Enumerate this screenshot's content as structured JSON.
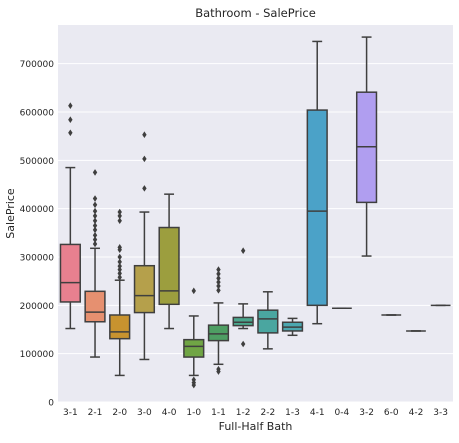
{
  "chart_data": {
    "type": "box",
    "title": "Bathroom - SalePrice",
    "xlabel": "Full-Half Bath",
    "ylabel": "SalePrice",
    "ylim": [
      0,
      780000
    ],
    "yticks": [
      0,
      100000,
      200000,
      300000,
      400000,
      500000,
      600000,
      700000
    ],
    "ytick_labels": [
      "0",
      "100000",
      "200000",
      "300000",
      "400000",
      "500000",
      "600000",
      "700000"
    ],
    "grid": true,
    "background": "#eaeaf2",
    "boxes": [
      {
        "category": "3-1",
        "color": "#e8808f",
        "whisker_low": 152000,
        "q1": 207000,
        "median": 247000,
        "q3": 326000,
        "whisker_high": 485000,
        "outliers": [
          613000,
          584000,
          557000
        ]
      },
      {
        "category": "2-1",
        "color": "#e69070",
        "whisker_low": 93000,
        "q1": 166000,
        "median": 186000,
        "q3": 229000,
        "whisker_high": 318000,
        "outliers": [
          475000,
          421000,
          408000,
          395000,
          385000,
          375000,
          365000,
          356000,
          345000,
          336000,
          327000
        ]
      },
      {
        "category": "2-0",
        "color": "#c8932f",
        "whisker_low": 55000,
        "q1": 131000,
        "median": 145000,
        "q3": 180000,
        "whisker_high": 252000,
        "outliers": [
          393000,
          385000,
          375000,
          320000,
          315000,
          300000,
          290000,
          281000,
          274000,
          266000,
          258000
        ]
      },
      {
        "category": "3-0",
        "color": "#b5a04b",
        "whisker_low": 88000,
        "q1": 185000,
        "median": 220000,
        "q3": 282000,
        "whisker_high": 393000,
        "outliers": [
          553000,
          503000,
          442000
        ]
      },
      {
        "category": "4-0",
        "color": "#9c9e3e",
        "whisker_low": 152000,
        "q1": 202000,
        "median": 230000,
        "q3": 361000,
        "whisker_high": 430000,
        "outliers": []
      },
      {
        "category": "1-0",
        "color": "#70a545",
        "whisker_low": 55000,
        "q1": 93000,
        "median": 115000,
        "q3": 129000,
        "whisker_high": 178000,
        "outliers": [
          230000,
          46000,
          40000,
          35000
        ]
      },
      {
        "category": "1-1",
        "color": "#4e9e63",
        "whisker_low": 78000,
        "q1": 127000,
        "median": 141000,
        "q3": 159000,
        "whisker_high": 205000,
        "outliers": [
          274000,
          265000,
          256000,
          248000,
          240000,
          231000,
          68000,
          63000
        ]
      },
      {
        "category": "1-2",
        "color": "#4aa68c",
        "whisker_low": 152000,
        "q1": 158000,
        "median": 165000,
        "q3": 175000,
        "whisker_high": 203000,
        "outliers": [
          313000,
          120000
        ]
      },
      {
        "category": "2-2",
        "color": "#4aa6a0",
        "whisker_low": 110000,
        "q1": 143000,
        "median": 172000,
        "q3": 190000,
        "whisker_high": 228000,
        "outliers": []
      },
      {
        "category": "1-3",
        "color": "#4ba7b0",
        "whisker_low": 138000,
        "q1": 147000,
        "median": 155000,
        "q3": 165000,
        "whisker_high": 173000,
        "outliers": []
      },
      {
        "category": "4-1",
        "color": "#4ba2c8",
        "whisker_low": 162000,
        "q1": 200000,
        "median": 395000,
        "q3": 604000,
        "whisker_high": 746000,
        "outliers": []
      },
      {
        "category": "0-4",
        "color": "#6b9fd6",
        "whisker_low": 194000,
        "q1": 194000,
        "median": 194000,
        "q3": 194000,
        "whisker_high": 194000,
        "outliers": []
      },
      {
        "category": "3-2",
        "color": "#b09ef0",
        "whisker_low": 302000,
        "q1": 413000,
        "median": 528000,
        "q3": 641000,
        "whisker_high": 755000,
        "outliers": []
      },
      {
        "category": "6-0",
        "color": "#d08fe0",
        "whisker_low": 180000,
        "q1": 180000,
        "median": 180000,
        "q3": 180000,
        "whisker_high": 180000,
        "outliers": []
      },
      {
        "category": "4-2",
        "color": "#e58ad0",
        "whisker_low": 147000,
        "q1": 147000,
        "median": 147000,
        "q3": 147000,
        "whisker_high": 147000,
        "outliers": []
      },
      {
        "category": "3-3",
        "color": "#ea86b0",
        "whisker_low": 200000,
        "q1": 200000,
        "median": 200000,
        "q3": 200000,
        "whisker_high": 200000,
        "outliers": []
      }
    ]
  }
}
